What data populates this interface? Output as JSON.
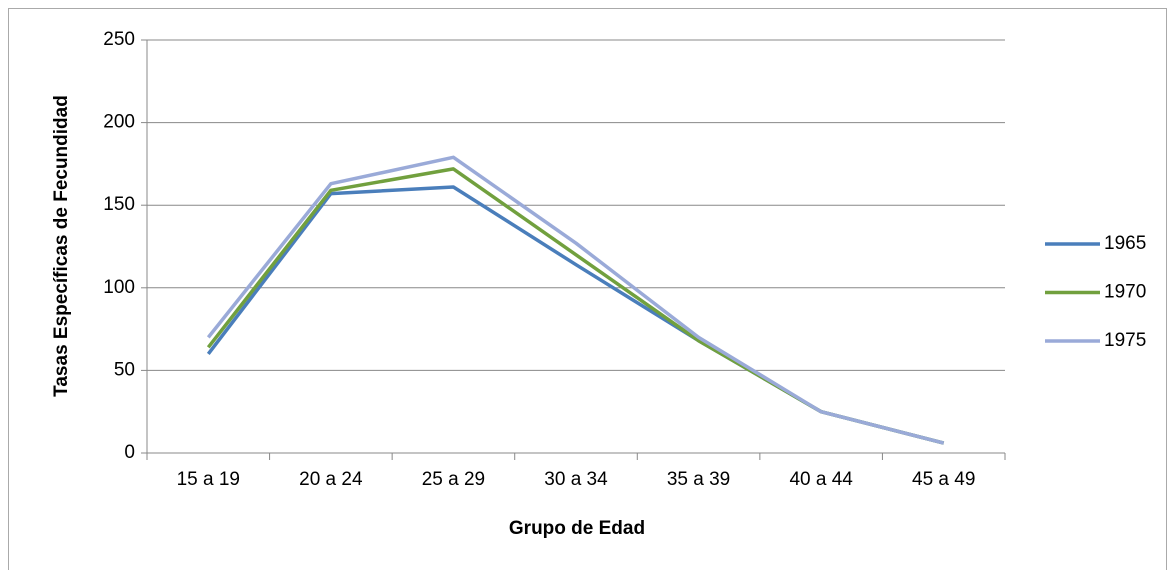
{
  "chart_data": {
    "type": "line",
    "x_label": "Grupo de Edad",
    "y_label": "Tasas Específicas de Fecundidad",
    "categories": [
      "15 a 19",
      "20 a 24",
      "25 a 29",
      "30 a 34",
      "35 a 39",
      "40 a 44",
      "45 a 49"
    ],
    "series": [
      {
        "name": "1965",
        "color": "#4a7ebb",
        "values": [
          60,
          157,
          161,
          114,
          68,
          25,
          6
        ]
      },
      {
        "name": "1970",
        "color": "#71a03e",
        "values": [
          64,
          159,
          172,
          120,
          68,
          25,
          6
        ]
      },
      {
        "name": "1975",
        "color": "#9aaad8",
        "values": [
          70,
          163,
          179,
          127,
          70,
          25,
          6
        ]
      }
    ],
    "ylim": [
      0,
      250
    ],
    "yticks": [
      0,
      50,
      100,
      150,
      200,
      250
    ],
    "grid": true,
    "legend": "right"
  }
}
